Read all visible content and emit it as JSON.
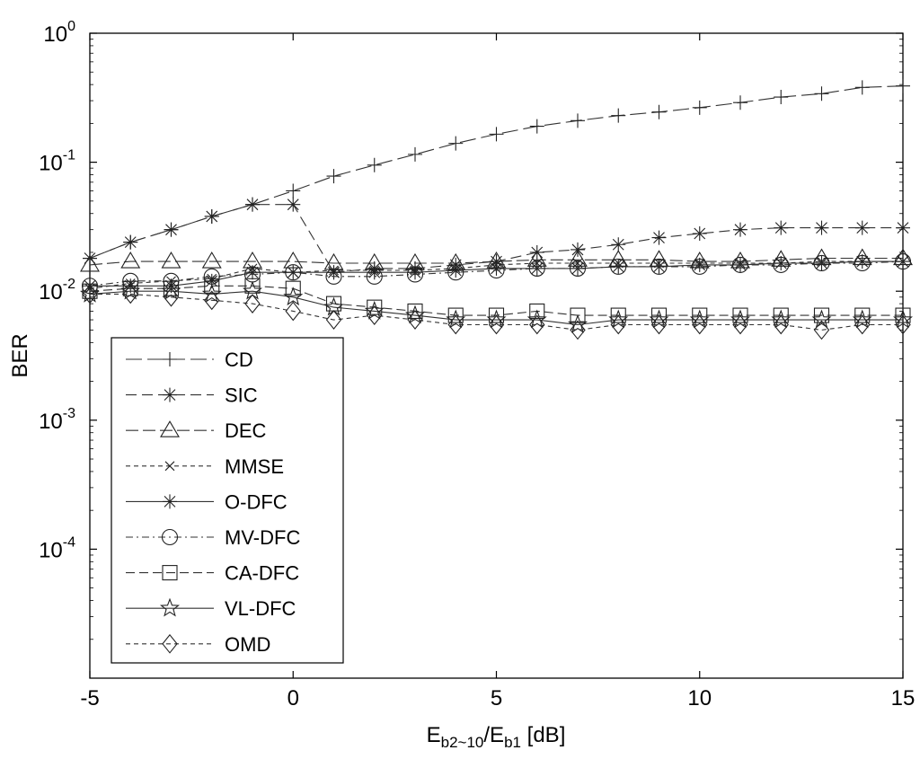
{
  "chart_data": {
    "type": "line",
    "title": "",
    "xlabel": {
      "base": "E",
      "sub1": "b2~10",
      "slash": "/E",
      "sub2": "b1",
      "unit": " [dB]"
    },
    "ylabel": "BER",
    "xlim": [
      -5,
      15
    ],
    "ylim": [
      1e-05,
      1
    ],
    "yscale": "log",
    "grid": false,
    "legend_position": "bottom-left",
    "x_ticks": [
      {
        "value": -5,
        "label": "-5"
      },
      {
        "value": 0,
        "label": "0"
      },
      {
        "value": 5,
        "label": "5"
      },
      {
        "value": 10,
        "label": "10"
      },
      {
        "value": 15,
        "label": "15"
      }
    ],
    "y_ticks": [
      {
        "value": 1,
        "base": "10",
        "exp": "0"
      },
      {
        "value": 0.1,
        "base": "10",
        "exp": "-1"
      },
      {
        "value": 0.01,
        "base": "10",
        "exp": "-2"
      },
      {
        "value": 0.001,
        "base": "10",
        "exp": "-3"
      },
      {
        "value": 0.0001,
        "base": "10",
        "exp": "-4"
      }
    ],
    "x": [
      -5,
      -4,
      -3,
      -2,
      -1,
      0,
      1,
      2,
      3,
      4,
      5,
      6,
      7,
      8,
      9,
      10,
      11,
      12,
      13,
      14,
      15
    ],
    "series": [
      {
        "name": "CD",
        "marker": "plus",
        "dash": "18,6",
        "values": [
          0.018,
          0.024,
          0.03,
          0.038,
          0.047,
          0.06,
          0.078,
          0.095,
          0.115,
          0.14,
          0.165,
          0.19,
          0.21,
          0.23,
          0.245,
          0.265,
          0.29,
          0.32,
          0.34,
          0.38,
          0.39
        ]
      },
      {
        "name": "SIC",
        "marker": "asterisk",
        "dash": "12,6",
        "values": [
          0.018,
          0.024,
          0.03,
          0.038,
          0.047,
          0.047,
          0.014,
          0.015,
          0.015,
          0.016,
          0.017,
          0.02,
          0.021,
          0.023,
          0.026,
          0.028,
          0.03,
          0.031,
          0.031,
          0.031,
          0.031
        ]
      },
      {
        "name": "DEC",
        "marker": "triangle",
        "dash": "14,5",
        "values": [
          0.016,
          0.017,
          0.017,
          0.017,
          0.017,
          0.017,
          0.0165,
          0.0165,
          0.0165,
          0.0165,
          0.017,
          0.0175,
          0.0175,
          0.0175,
          0.0175,
          0.017,
          0.017,
          0.0175,
          0.018,
          0.018,
          0.018
        ]
      },
      {
        "name": "MMSE",
        "marker": "x",
        "dash": "5,4",
        "values": [
          0.0105,
          0.0115,
          0.012,
          0.0125,
          0.015,
          0.014,
          0.0145,
          0.0145,
          0.0145,
          0.015,
          0.016,
          0.0165,
          0.0165,
          0.0165,
          0.0165,
          0.0165,
          0.0165,
          0.0165,
          0.017,
          0.017,
          0.017
        ]
      },
      {
        "name": "O-DFC",
        "marker": "asterisk",
        "dash": "",
        "values": [
          0.011,
          0.011,
          0.011,
          0.012,
          0.014,
          0.014,
          0.014,
          0.014,
          0.014,
          0.0145,
          0.015,
          0.015,
          0.015,
          0.0155,
          0.0155,
          0.016,
          0.016,
          0.0165,
          0.0165,
          0.017,
          0.017
        ]
      },
      {
        "name": "MV-DFC",
        "marker": "circle",
        "dash": "8,4,2,4",
        "values": [
          0.011,
          0.012,
          0.012,
          0.013,
          0.0135,
          0.014,
          0.013,
          0.013,
          0.0135,
          0.014,
          0.0145,
          0.015,
          0.015,
          0.0155,
          0.0155,
          0.0155,
          0.016,
          0.016,
          0.0165,
          0.0165,
          0.017
        ]
      },
      {
        "name": "CA-DFC",
        "marker": "square",
        "dash": "10,5",
        "values": [
          0.01,
          0.0105,
          0.0105,
          0.011,
          0.011,
          0.0105,
          0.008,
          0.0075,
          0.007,
          0.0065,
          0.0065,
          0.007,
          0.0065,
          0.0065,
          0.0065,
          0.0065,
          0.0065,
          0.0065,
          0.0065,
          0.0065,
          0.0065
        ]
      },
      {
        "name": "VL-DFC",
        "marker": "star",
        "dash": "",
        "values": [
          0.0095,
          0.01,
          0.01,
          0.0095,
          0.01,
          0.009,
          0.0075,
          0.007,
          0.0065,
          0.006,
          0.006,
          0.006,
          0.0055,
          0.006,
          0.006,
          0.006,
          0.006,
          0.006,
          0.006,
          0.006,
          0.006
        ]
      },
      {
        "name": "OMD",
        "marker": "diamond",
        "dash": "5,4",
        "values": [
          0.0095,
          0.0095,
          0.009,
          0.0085,
          0.008,
          0.007,
          0.006,
          0.0065,
          0.006,
          0.0055,
          0.0055,
          0.0055,
          0.005,
          0.0055,
          0.0055,
          0.0055,
          0.0055,
          0.0055,
          0.005,
          0.0055,
          0.0055
        ]
      }
    ]
  }
}
